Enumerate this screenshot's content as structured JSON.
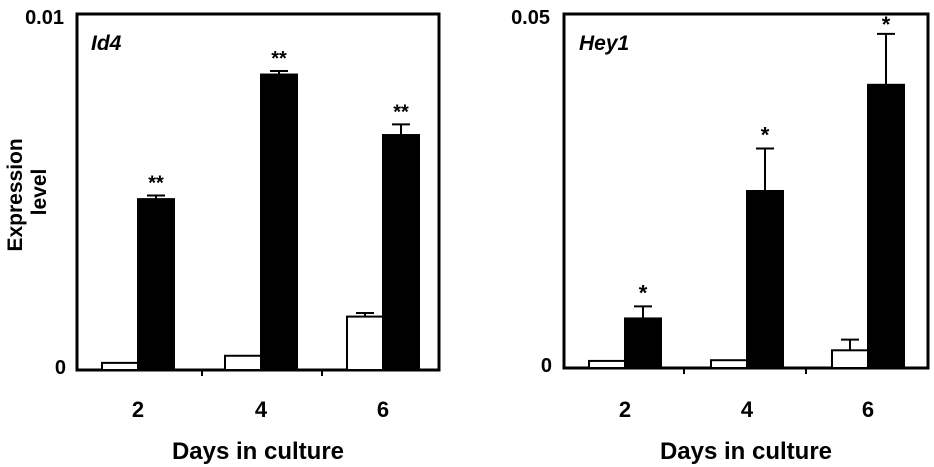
{
  "chart_data": [
    {
      "type": "bar",
      "gene_label": "Id4",
      "title": "",
      "xlabel": "Days in culture",
      "ylabel": "Expression level",
      "ylim": [
        0,
        0.01
      ],
      "yticks": [
        "0",
        "0.01"
      ],
      "categories": [
        "2",
        "4",
        "6"
      ],
      "series": [
        {
          "fill": "#ffffff",
          "values": [
            0.0002,
            0.0004,
            0.0015
          ],
          "errors": [
            0,
            0,
            0.0001
          ]
        },
        {
          "fill": "#000000",
          "values": [
            0.0048,
            0.0083,
            0.0066
          ],
          "errors": [
            0.0001,
            0.0001,
            0.0003
          ]
        }
      ],
      "significance": [
        "**",
        "**",
        "**"
      ]
    },
    {
      "type": "bar",
      "gene_label": "Hey1",
      "title": "",
      "xlabel": "Days in culture",
      "ylabel": "",
      "ylim": [
        0,
        0.05
      ],
      "yticks": [
        "0",
        "0.05"
      ],
      "categories": [
        "2",
        "4",
        "6"
      ],
      "series": [
        {
          "fill": "#ffffff",
          "values": [
            0.001,
            0.0011,
            0.0025
          ],
          "errors": [
            0,
            0,
            0.0015
          ]
        },
        {
          "fill": "#000000",
          "values": [
            0.007,
            0.025,
            0.04
          ],
          "errors": [
            0.0017,
            0.006,
            0.0072
          ]
        }
      ],
      "significance": [
        "*",
        "*",
        "*"
      ]
    }
  ]
}
